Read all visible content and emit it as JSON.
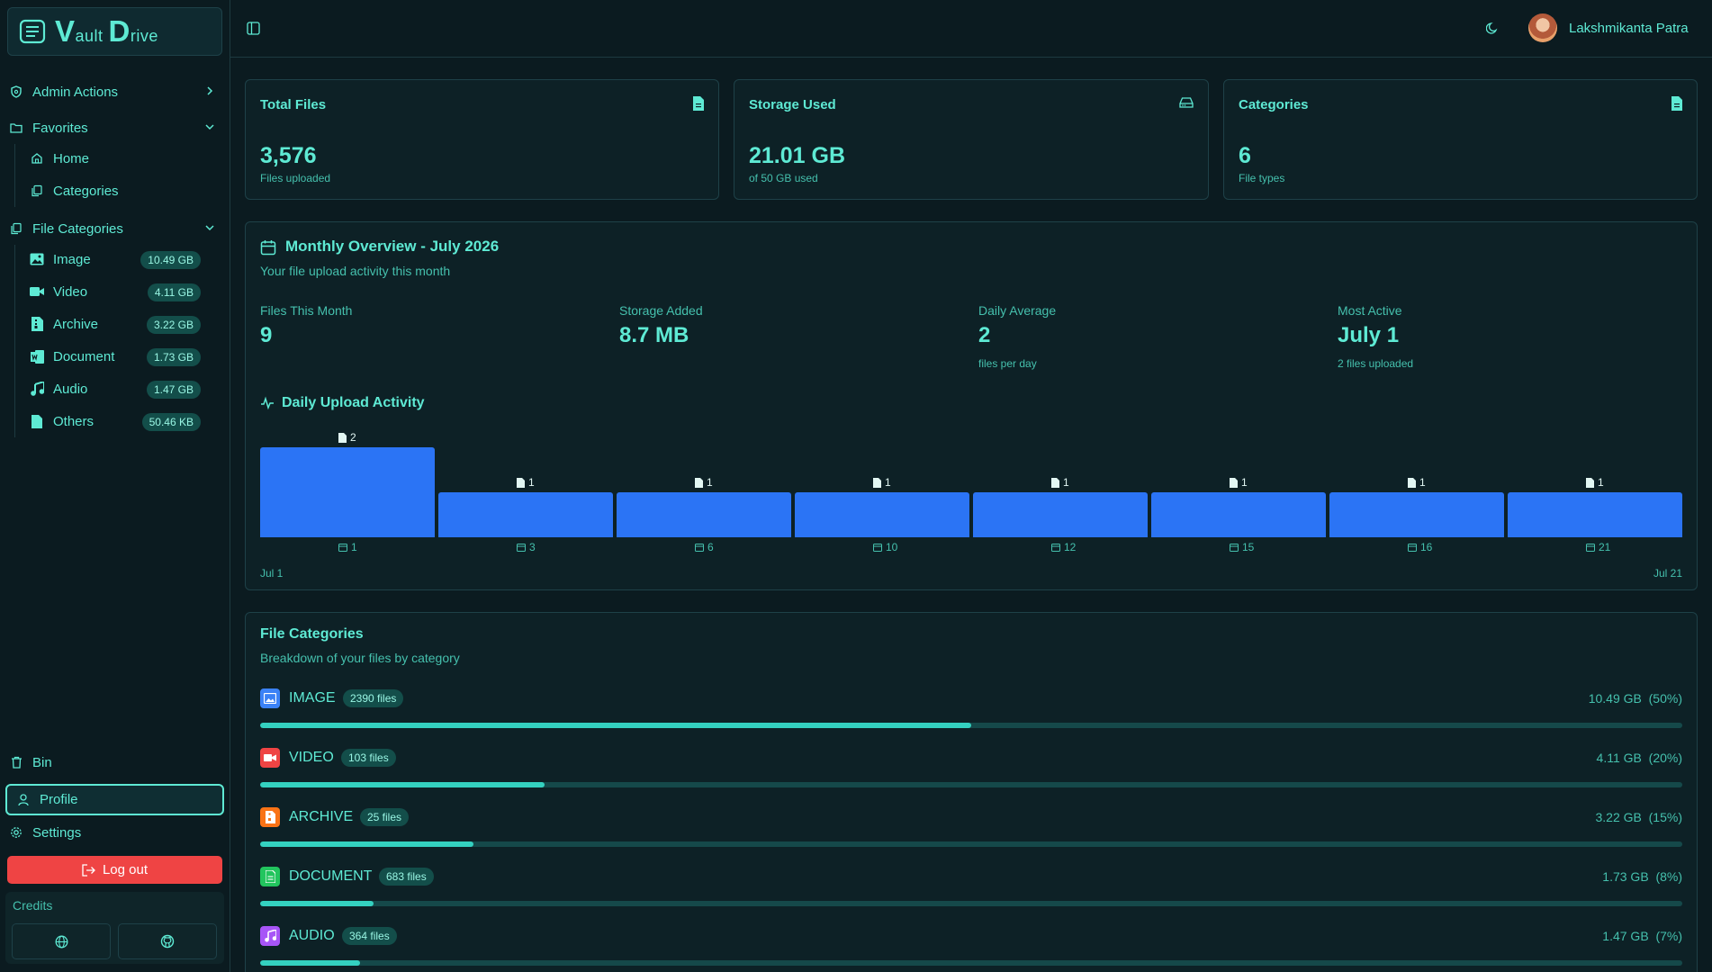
{
  "app": {
    "logo": {
      "v": "V",
      "ault": "ault",
      "d": "D",
      "rive": "rive"
    }
  },
  "sidebar": {
    "admin_actions": "Admin Actions",
    "favorites": "Favorites",
    "home": "Home",
    "categories": "Categories",
    "file_categories": "File Categories",
    "items": [
      {
        "label": "Image",
        "size": "10.49 GB"
      },
      {
        "label": "Video",
        "size": "4.11 GB"
      },
      {
        "label": "Archive",
        "size": "3.22 GB"
      },
      {
        "label": "Document",
        "size": "1.73 GB"
      },
      {
        "label": "Audio",
        "size": "1.47 GB"
      },
      {
        "label": "Others",
        "size": "50.46 KB"
      }
    ],
    "bin": "Bin",
    "profile": "Profile",
    "settings": "Settings",
    "logout": "Log out",
    "credits": "Credits"
  },
  "header": {
    "user_name": "Lakshmikanta Patra"
  },
  "cards": [
    {
      "title": "Total Files",
      "value": "3,576",
      "sub": "Files uploaded"
    },
    {
      "title": "Storage Used",
      "value": "21.01 GB",
      "sub": "of 50 GB used"
    },
    {
      "title": "Categories",
      "value": "6",
      "sub": "File types"
    }
  ],
  "monthly": {
    "title": "Monthly Overview - July 2026",
    "subtitle": "Your file upload activity this month",
    "stats": [
      {
        "label": "Files This Month",
        "value": "9",
        "sub": ""
      },
      {
        "label": "Storage Added",
        "value": "8.7 MB",
        "sub": ""
      },
      {
        "label": "Daily Average",
        "value": "2",
        "sub": "files per day"
      },
      {
        "label": "Most Active",
        "value": "July 1",
        "sub": "2 files uploaded"
      }
    ],
    "activity_title": "Daily Upload Activity",
    "axis_start": "Jul 1",
    "axis_end": "Jul 21"
  },
  "chart_data": {
    "type": "bar",
    "title": "Daily Upload Activity",
    "categories": [
      "1",
      "3",
      "6",
      "10",
      "12",
      "15",
      "16",
      "21"
    ],
    "values": [
      2,
      1,
      1,
      1,
      1,
      1,
      1,
      1
    ],
    "ylim": [
      0,
      2
    ]
  },
  "file_categories": {
    "title": "File Categories",
    "subtitle": "Breakdown of your files by category",
    "rows": [
      {
        "name": "IMAGE",
        "files": "2390 files",
        "size": "10.49 GB",
        "pct": "(50%)",
        "fraction": 0.5,
        "color": "#3b82f6",
        "icon": "image-icon"
      },
      {
        "name": "VIDEO",
        "files": "103 files",
        "size": "4.11 GB",
        "pct": "(20%)",
        "fraction": 0.2,
        "color": "#ef4444",
        "icon": "video-icon"
      },
      {
        "name": "ARCHIVE",
        "files": "25 files",
        "size": "3.22 GB",
        "pct": "(15%)",
        "fraction": 0.15,
        "color": "#f97316",
        "icon": "archive-icon"
      },
      {
        "name": "DOCUMENT",
        "files": "683 files",
        "size": "1.73 GB",
        "pct": "(8%)",
        "fraction": 0.08,
        "color": "#22c55e",
        "icon": "document-icon"
      },
      {
        "name": "AUDIO",
        "files": "364 files",
        "size": "1.47 GB",
        "pct": "(7%)",
        "fraction": 0.07,
        "color": "#a855f7",
        "icon": "audio-icon"
      }
    ]
  },
  "colors": {
    "accent": "#5eead4",
    "bar": "#2b74f5",
    "logout": "#ef4444",
    "background": "#0b1b20"
  }
}
